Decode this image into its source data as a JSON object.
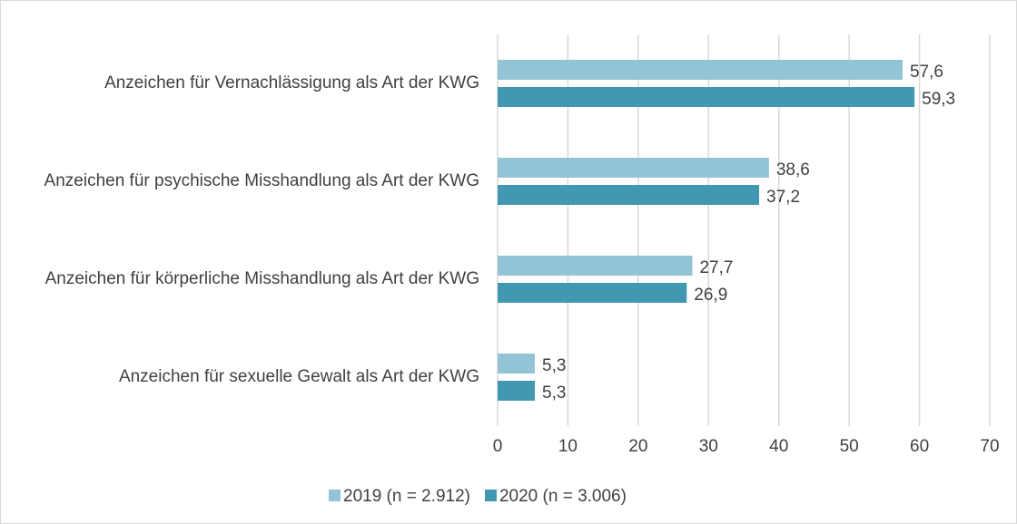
{
  "chart_data": {
    "type": "hbar",
    "categories": [
      "Anzeichen für Vernachlässigung als Art der KWG",
      "Anzeichen für psychische Misshandlung als Art der KWG",
      "Anzeichen für körperliche Misshandlung als Art der KWG",
      "Anzeichen für sexuelle Gewalt als Art der KWG"
    ],
    "series": [
      {
        "name": "2019 (n = 2.912)",
        "color": "#93c4d5",
        "values": [
          57.6,
          38.6,
          27.7,
          5.3
        ],
        "value_labels": [
          "57,6",
          "38,6",
          "27,7",
          "5,3"
        ]
      },
      {
        "name": "2020 (n = 3.006)",
        "color": "#4198b0",
        "values": [
          59.3,
          37.2,
          26.9,
          5.3
        ],
        "value_labels": [
          "59,3",
          "37,2",
          "26,9",
          "5,3"
        ]
      }
    ],
    "xlim": [
      0,
      70
    ],
    "xticks": [
      0,
      10,
      20,
      30,
      40,
      50,
      60,
      70
    ],
    "grid": true,
    "legend": "bottom"
  }
}
